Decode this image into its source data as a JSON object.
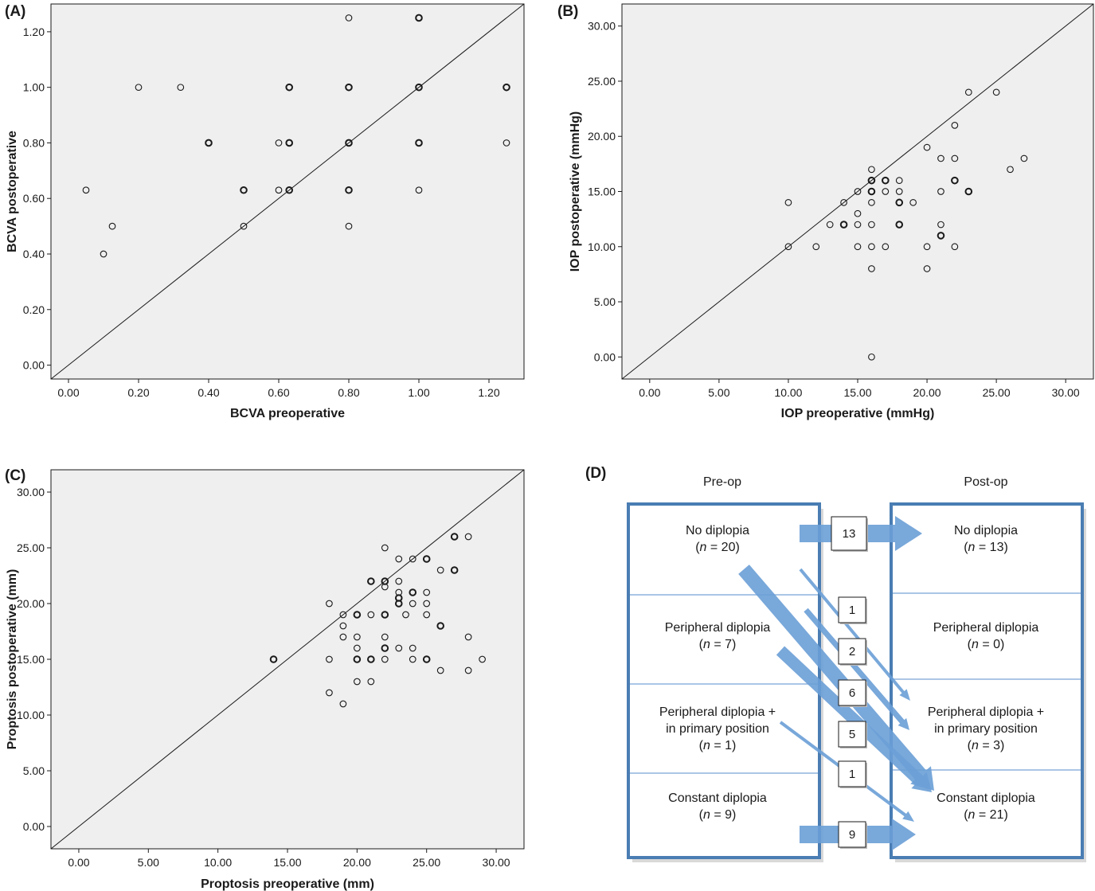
{
  "chart_data": [
    {
      "panel": "(A)",
      "type": "scatter",
      "xlabel": "BCVA preoperative",
      "ylabel": "BCVA postoperative",
      "xlim": [
        -0.05,
        1.3
      ],
      "ylim": [
        -0.05,
        1.3
      ],
      "xticks": [
        "0.00",
        "0.20",
        "0.40",
        "0.60",
        "0.80",
        "1.00",
        "1.20"
      ],
      "yticks": [
        "0.00",
        "0.20",
        "0.40",
        "0.60",
        "0.80",
        "1.00",
        "1.20"
      ],
      "reference_line": "identity",
      "grid": false,
      "points": [
        [
          0.05,
          0.63
        ],
        [
          0.1,
          0.4
        ],
        [
          0.125,
          0.5
        ],
        [
          0.2,
          1.0
        ],
        [
          0.32,
          1.0
        ],
        [
          0.4,
          0.8
        ],
        [
          0.5,
          0.63
        ],
        [
          0.5,
          0.5
        ],
        [
          0.6,
          0.8
        ],
        [
          0.6,
          0.63
        ],
        [
          0.63,
          1.0
        ],
        [
          0.63,
          0.8
        ],
        [
          0.63,
          0.63
        ],
        [
          0.8,
          1.25
        ],
        [
          0.8,
          1.0
        ],
        [
          0.8,
          0.8
        ],
        [
          0.8,
          0.63
        ],
        [
          0.8,
          0.5
        ],
        [
          1.0,
          1.25
        ],
        [
          1.0,
          1.0
        ],
        [
          1.0,
          0.8
        ],
        [
          1.0,
          0.63
        ],
        [
          1.25,
          1.0
        ],
        [
          1.25,
          0.8
        ]
      ],
      "bold_points": [
        [
          0.4,
          0.8
        ],
        [
          0.5,
          0.63
        ],
        [
          0.63,
          1.0
        ],
        [
          0.63,
          0.8
        ],
        [
          0.63,
          0.63
        ],
        [
          0.8,
          1.0
        ],
        [
          0.8,
          0.8
        ],
        [
          0.8,
          0.63
        ],
        [
          1.0,
          1.25
        ],
        [
          1.0,
          1.0
        ],
        [
          1.0,
          0.8
        ],
        [
          1.25,
          1.0
        ]
      ]
    },
    {
      "panel": "(B)",
      "type": "scatter",
      "xlabel": "IOP preoperative (mmHg)",
      "ylabel": "IOP postoperative (mmHg)",
      "xlim": [
        -2,
        32
      ],
      "ylim": [
        -2,
        32
      ],
      "xticks": [
        "0.00",
        "5.00",
        "10.00",
        "15.00",
        "20.00",
        "25.00",
        "30.00"
      ],
      "yticks": [
        "0.00",
        "5.00",
        "10.00",
        "15.00",
        "20.00",
        "25.00",
        "30.00"
      ],
      "reference_line": "identity",
      "grid": false,
      "points": [
        [
          10,
          14
        ],
        [
          10,
          10
        ],
        [
          12,
          10
        ],
        [
          13,
          12
        ],
        [
          14,
          14
        ],
        [
          14,
          12
        ],
        [
          15,
          15
        ],
        [
          15,
          13
        ],
        [
          15,
          12
        ],
        [
          15,
          10
        ],
        [
          16,
          17
        ],
        [
          16,
          16
        ],
        [
          16,
          15
        ],
        [
          16,
          14
        ],
        [
          16,
          12
        ],
        [
          16,
          10
        ],
        [
          16,
          8
        ],
        [
          16,
          0
        ],
        [
          17,
          16
        ],
        [
          17,
          15
        ],
        [
          17,
          10
        ],
        [
          18,
          16
        ],
        [
          18,
          15
        ],
        [
          18,
          14
        ],
        [
          18,
          12
        ],
        [
          19,
          14
        ],
        [
          20,
          19
        ],
        [
          20,
          10
        ],
        [
          20,
          8
        ],
        [
          21,
          18
        ],
        [
          21,
          15
        ],
        [
          21,
          12
        ],
        [
          21,
          11
        ],
        [
          22,
          21
        ],
        [
          22,
          18
        ],
        [
          22,
          16
        ],
        [
          22,
          10
        ],
        [
          23,
          24
        ],
        [
          23,
          15
        ],
        [
          25,
          24
        ],
        [
          26,
          17
        ],
        [
          27,
          18
        ]
      ],
      "bold_points": [
        [
          14,
          12
        ],
        [
          16,
          15
        ],
        [
          16,
          16
        ],
        [
          17,
          16
        ],
        [
          18,
          14
        ],
        [
          18,
          12
        ],
        [
          21,
          11
        ],
        [
          22,
          16
        ],
        [
          23,
          15
        ]
      ]
    },
    {
      "panel": "(C)",
      "type": "scatter",
      "xlabel": "Proptosis preoperative (mm)",
      "ylabel": "Proptosis postoperative (mm)",
      "xlim": [
        -2,
        32
      ],
      "ylim": [
        -2,
        32
      ],
      "xticks": [
        "0.00",
        "5.00",
        "10.00",
        "15.00",
        "20.00",
        "25.00",
        "30.00"
      ],
      "yticks": [
        "0.00",
        "5.00",
        "10.00",
        "15.00",
        "20.00",
        "25.00",
        "30.00"
      ],
      "reference_line": "identity",
      "grid": false,
      "points": [
        [
          14,
          15
        ],
        [
          18,
          20
        ],
        [
          18,
          15
        ],
        [
          18,
          12
        ],
        [
          19,
          19
        ],
        [
          19,
          18
        ],
        [
          19,
          17
        ],
        [
          19,
          11
        ],
        [
          20,
          19
        ],
        [
          20,
          17
        ],
        [
          20,
          16
        ],
        [
          20,
          15
        ],
        [
          20,
          13
        ],
        [
          21,
          22
        ],
        [
          21,
          19
        ],
        [
          21,
          15
        ],
        [
          21,
          13
        ],
        [
          22,
          25
        ],
        [
          22,
          22
        ],
        [
          22,
          21.5
        ],
        [
          22,
          19
        ],
        [
          22,
          17
        ],
        [
          22,
          16
        ],
        [
          22,
          15
        ],
        [
          23,
          24
        ],
        [
          23,
          22
        ],
        [
          23,
          21
        ],
        [
          23,
          20.5
        ],
        [
          23,
          20
        ],
        [
          23,
          16
        ],
        [
          23.5,
          19
        ],
        [
          24,
          24
        ],
        [
          24,
          21
        ],
        [
          24,
          20
        ],
        [
          24,
          16
        ],
        [
          24,
          15
        ],
        [
          25,
          24
        ],
        [
          25,
          21
        ],
        [
          25,
          20
        ],
        [
          25,
          19
        ],
        [
          25,
          15
        ],
        [
          26,
          23
        ],
        [
          26,
          18
        ],
        [
          26,
          14
        ],
        [
          27,
          26
        ],
        [
          27,
          23
        ],
        [
          28,
          26
        ],
        [
          28,
          17
        ],
        [
          28,
          14
        ],
        [
          29,
          15
        ]
      ],
      "bold_points": [
        [
          14,
          15
        ],
        [
          20,
          19
        ],
        [
          20,
          15
        ],
        [
          21,
          22
        ],
        [
          21,
          15
        ],
        [
          22,
          22
        ],
        [
          22,
          19
        ],
        [
          22,
          16
        ],
        [
          23,
          20.5
        ],
        [
          23,
          20
        ],
        [
          24,
          21
        ],
        [
          25,
          24
        ],
        [
          25,
          15
        ],
        [
          26,
          18
        ],
        [
          27,
          26
        ],
        [
          27,
          23
        ]
      ]
    }
  ],
  "panel_d": {
    "letter": "(D)",
    "pre_title": "Pre-op",
    "post_title": "Post-op",
    "pre_boxes": [
      {
        "lines": [
          "No diplopia"
        ],
        "n": "(n = 20)"
      },
      {
        "lines": [
          "Peripheral diplopia"
        ],
        "n": "(n = 7)"
      },
      {
        "lines": [
          "Peripheral diplopia +",
          "in primary position"
        ],
        "n": "(n = 1)"
      },
      {
        "lines": [
          "Constant diplopia"
        ],
        "n": "(n = 9)"
      }
    ],
    "post_boxes": [
      {
        "lines": [
          "No diplopia"
        ],
        "n": "(n = 13)"
      },
      {
        "lines": [
          "Peripheral diplopia"
        ],
        "n": "(n = 0)"
      },
      {
        "lines": [
          "Peripheral diplopia +",
          "in primary position"
        ],
        "n": "(n = 3)"
      },
      {
        "lines": [
          "Constant diplopia"
        ],
        "n": "(n = 21)"
      }
    ],
    "flows": [
      {
        "from": "No diplopia",
        "to": "No diplopia",
        "count": "13"
      },
      {
        "from": "No diplopia",
        "to": "Peripheral diplopia + in primary position",
        "count": "1"
      },
      {
        "from": "Peripheral diplopia",
        "to": "Peripheral diplopia + in primary position",
        "count": "2"
      },
      {
        "from": "No diplopia",
        "to": "Constant diplopia",
        "count": "6"
      },
      {
        "from": "Peripheral diplopia",
        "to": "Constant diplopia",
        "count": "5"
      },
      {
        "from": "Peripheral diplopia + in primary position",
        "to": "Constant diplopia",
        "count": "1"
      },
      {
        "from": "Constant diplopia",
        "to": "Constant diplopia",
        "count": "9"
      }
    ],
    "colors": {
      "box_border": "#4a7db3",
      "arrow": "#6a9fd6",
      "divider": "#8fb4de"
    }
  },
  "colors": {
    "plot_bg": "#efefef",
    "ink": "#1a1a1a"
  }
}
